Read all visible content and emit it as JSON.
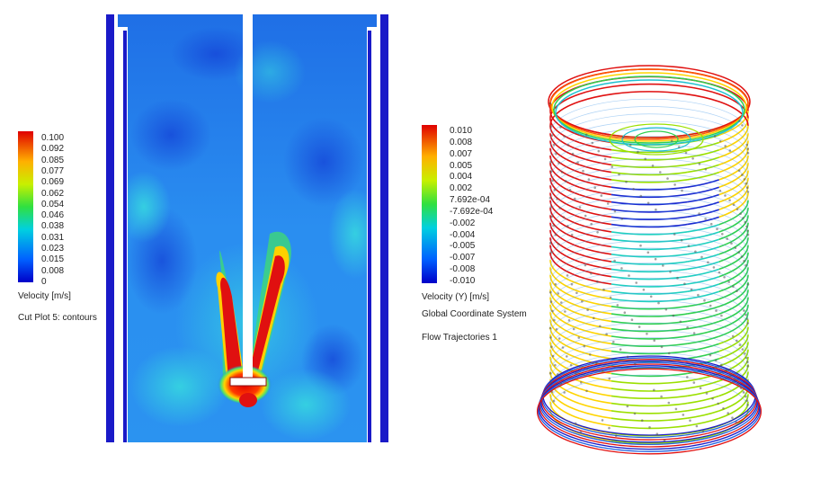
{
  "cut_plot": {
    "legend": {
      "ticks": [
        "0.100",
        "0.092",
        "0.085",
        "0.077",
        "0.069",
        "0.062",
        "0.054",
        "0.046",
        "0.038",
        "0.031",
        "0.023",
        "0.015",
        "0.008",
        "0"
      ],
      "quantity": "Velocity [m/s]",
      "plot_name": "Cut Plot 5: contours"
    }
  },
  "trajectories": {
    "legend": {
      "ticks": [
        "0.010",
        "0.008",
        "0.007",
        "0.005",
        "0.004",
        "0.002",
        "7.692e-04",
        "-7.692e-04",
        "-0.002",
        "-0.004",
        "-0.005",
        "-0.007",
        "-0.008",
        "-0.010"
      ],
      "quantity": "Velocity (Y) [m/s]",
      "coordinate_system": "Global Coordinate System",
      "plot_name": "Flow Trajectories 1"
    }
  },
  "colors": {
    "wall": "#1a1ac8",
    "field_base": "#1e7ee8",
    "jet": "#e01010"
  }
}
